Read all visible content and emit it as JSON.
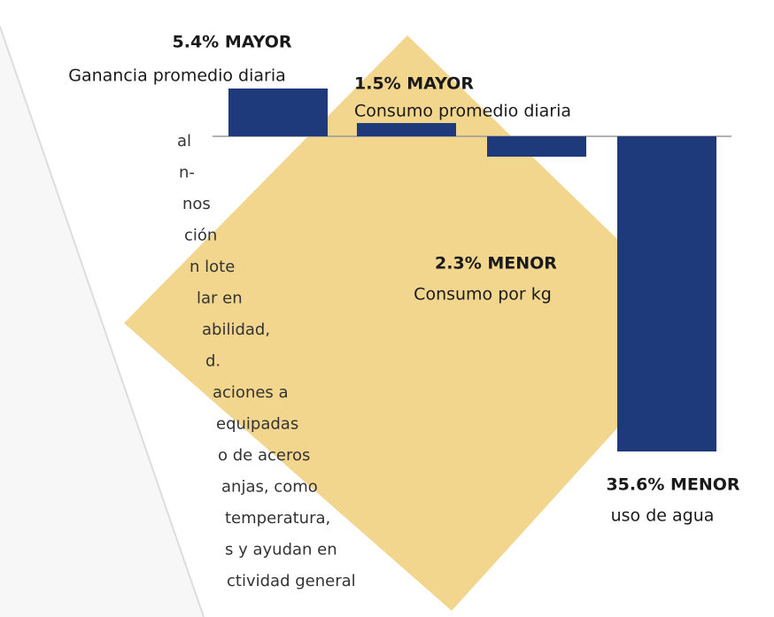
{
  "chart_data": {
    "type": "bar",
    "categories": [
      "Ganancia promedio diaria",
      "Consumo promedio diaria",
      "Consumo por kg",
      "uso de agua"
    ],
    "values": [
      5.4,
      1.5,
      -2.3,
      -35.6
    ],
    "value_labels": [
      "5.4% MAYOR",
      "1.5% MAYOR",
      "2.3% MENOR",
      "35.6% MENOR"
    ],
    "color": "#1f3a7a"
  },
  "side_text": {
    "lines": [
      "al",
      "n-",
      "nos",
      "ción",
      "n lote",
      "lar en",
      "abilidad,",
      "d.",
      "aciones a",
      "equipadas",
      "o de aceros",
      "anjas, como",
      "temperatura,",
      "s y ayudan en",
      "ctividad general"
    ]
  }
}
